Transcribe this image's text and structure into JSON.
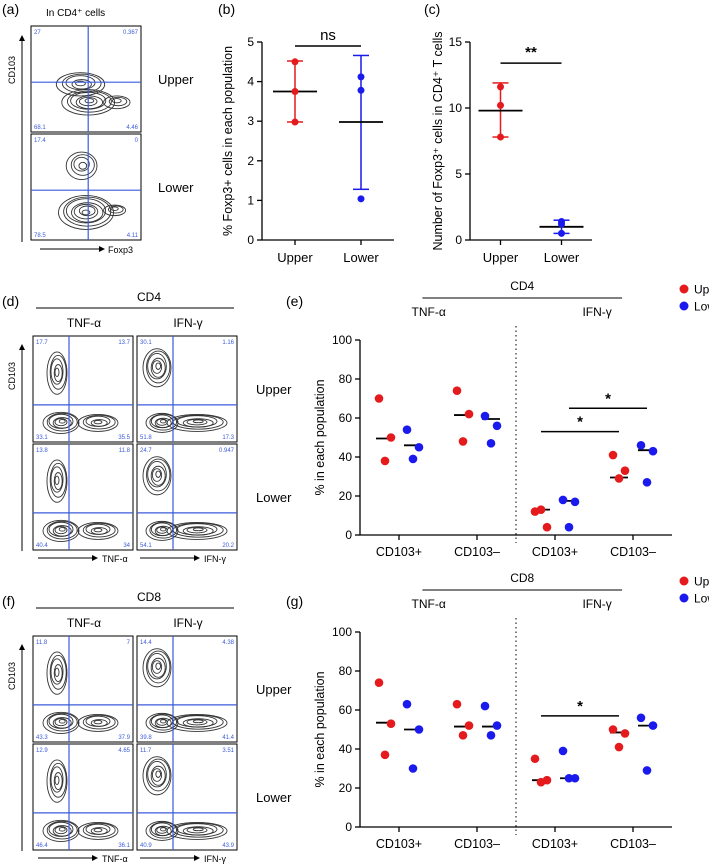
{
  "colors": {
    "upper": "#e41a1c",
    "lower": "#1a1aee",
    "gate": "#3b5bdb",
    "axis": "#000000",
    "contour": "#333333"
  },
  "panel_labels": {
    "a": "(a)",
    "b": "(b)",
    "c": "(c)",
    "d": "(d)",
    "e": "(e)",
    "f": "(f)",
    "g": "(g)"
  },
  "panel_a": {
    "title": "In CD4⁺ cells",
    "y_axis": "CD103",
    "x_axis": "Foxp3",
    "rows": [
      {
        "label": "Upper",
        "q_tl": "27",
        "q_tr": "0.367",
        "q_bl": "68.1",
        "q_br": "4.46"
      },
      {
        "label": "Lower",
        "q_tl": "17.4",
        "q_tr": "0",
        "q_bl": "78.5",
        "q_br": "4.11"
      }
    ]
  },
  "panel_d": {
    "header": "CD4",
    "columns": [
      "TNF-α",
      "IFN-γ"
    ],
    "y_axis": "CD103",
    "x_axes": [
      "TNF-α",
      "IFN-γ"
    ],
    "rows": [
      {
        "label": "Upper",
        "plots": [
          {
            "q_tl": "17.7",
            "q_tr": "13.7",
            "q_bl": "33.1",
            "q_br": "35.5"
          },
          {
            "q_tl": "30.1",
            "q_tr": "1.16",
            "q_bl": "51.8",
            "q_br": "17.3"
          }
        ]
      },
      {
        "label": "Lower",
        "plots": [
          {
            "q_tl": "13.8",
            "q_tr": "11.8",
            "q_bl": "40.4",
            "q_br": "34"
          },
          {
            "q_tl": "24.7",
            "q_tr": "0.947",
            "q_bl": "54.1",
            "q_br": "20.2"
          }
        ]
      }
    ]
  },
  "panel_f": {
    "header": "CD8",
    "columns": [
      "TNF-α",
      "IFN-γ"
    ],
    "y_axis": "CD103",
    "x_axes": [
      "TNF-α",
      "IFN-γ"
    ],
    "rows": [
      {
        "label": "Upper",
        "plots": [
          {
            "q_tl": "11.8",
            "q_tr": "7",
            "q_bl": "43.3",
            "q_br": "37.9"
          },
          {
            "q_tl": "14.4",
            "q_tr": "4.38",
            "q_bl": "39.8",
            "q_br": "41.4"
          }
        ]
      },
      {
        "label": "Lower",
        "plots": [
          {
            "q_tl": "12.9",
            "q_tr": "4.65",
            "q_bl": "46.4",
            "q_br": "36.1"
          },
          {
            "q_tl": "11.7",
            "q_tr": "3.51",
            "q_bl": "40.9",
            "q_br": "43.9"
          }
        ]
      }
    ]
  },
  "chart_data": [
    {
      "id": "b",
      "type": "scatter",
      "ylabel": "% Foxp3+ cells in each population",
      "categories": [
        "Upper",
        "Lower"
      ],
      "ylim": [
        0,
        5
      ],
      "yticks": [
        "0",
        "1",
        "2",
        "3",
        "4",
        "5"
      ],
      "series": [
        {
          "name": "Upper",
          "color": "upper",
          "points": [
            4.5,
            3.75,
            2.98
          ],
          "mean": 3.75,
          "err": [
            2.98,
            4.52
          ]
        },
        {
          "name": "Lower",
          "color": "lower",
          "points": [
            4.12,
            3.78,
            1.04
          ],
          "mean": 2.98,
          "err": [
            1.28,
            4.66
          ]
        }
      ],
      "significance": [
        {
          "label": "ns",
          "from": 0,
          "to": 1,
          "y": 4.9
        }
      ]
    },
    {
      "id": "c",
      "type": "scatter",
      "ylabel": "Number of Foxp3⁺ cells in CD4⁺ T cells",
      "categories": [
        "Upper",
        "Lower"
      ],
      "ylim": [
        0,
        15
      ],
      "yticks": [
        "0",
        "5",
        "10",
        "15"
      ],
      "series": [
        {
          "name": "Upper",
          "color": "upper",
          "points": [
            11.6,
            10.2,
            7.8
          ],
          "mean": 9.8,
          "err": [
            7.8,
            11.9
          ]
        },
        {
          "name": "Lower",
          "color": "lower",
          "points": [
            1.4,
            1.2,
            0.5
          ],
          "mean": 1.0,
          "err": [
            0.5,
            1.5
          ]
        }
      ],
      "significance": [
        {
          "label": "**",
          "from": 0,
          "to": 1,
          "y": 13.4
        }
      ]
    },
    {
      "id": "e",
      "type": "scatter",
      "title": "CD4",
      "ylabel": "% in each population",
      "group_labels": [
        "TNF-α",
        "IFN-γ"
      ],
      "categories": [
        "CD103+",
        "CD103–",
        "CD103+",
        "CD103–"
      ],
      "ylim": [
        0,
        100
      ],
      "yticks": [
        "0",
        "20",
        "40",
        "60",
        "80",
        "100"
      ],
      "legend": [
        "Upper",
        "Lower"
      ],
      "legend_position": "top-right",
      "series": [
        {
          "name": "Upper",
          "color": "upper",
          "points": [
            [
              70,
              50,
              38
            ],
            [
              74,
              62,
              48
            ],
            [
              12,
              4,
              13
            ],
            [
              41,
              33,
              29
            ]
          ],
          "medians": [
            49.5,
            61.5,
            13,
            29.5
          ]
        },
        {
          "name": "Lower",
          "color": "lower",
          "points": [
            [
              54,
              45,
              39
            ],
            [
              61,
              56,
              47
            ],
            [
              18,
              17,
              4
            ],
            [
              46,
              43,
              27
            ]
          ],
          "medians": [
            46,
            59.5,
            17.5,
            43.5
          ]
        }
      ],
      "significance": [
        {
          "label": "*",
          "from": 4,
          "to": 6,
          "y": 53
        },
        {
          "label": "*",
          "from": 5,
          "to": 7,
          "y": 65
        }
      ]
    },
    {
      "id": "g",
      "type": "scatter",
      "title": "CD8",
      "ylabel": "% in each population",
      "group_labels": [
        "TNF-α",
        "IFN-γ"
      ],
      "categories": [
        "CD103+",
        "CD103–",
        "CD103+",
        "CD103–"
      ],
      "ylim": [
        0,
        100
      ],
      "yticks": [
        "0",
        "20",
        "40",
        "60",
        "80",
        "100"
      ],
      "legend": [
        "Upper",
        "Lower"
      ],
      "legend_position": "top-right",
      "series": [
        {
          "name": "Upper",
          "color": "upper",
          "points": [
            [
              74,
              53,
              37
            ],
            [
              63,
              52,
              47
            ],
            [
              35,
              24,
              23
            ],
            [
              50,
              48,
              41
            ]
          ],
          "medians": [
            53.5,
            51.5,
            24,
            48.5
          ]
        },
        {
          "name": "Lower",
          "color": "lower",
          "points": [
            [
              63,
              50,
              30
            ],
            [
              62,
              52,
              47
            ],
            [
              39,
              25,
              25
            ],
            [
              56,
              52,
              29
            ]
          ],
          "medians": [
            50,
            51.5,
            25,
            52
          ]
        }
      ],
      "significance": [
        {
          "label": "*",
          "from": 4,
          "to": 6,
          "y": 57
        }
      ]
    }
  ]
}
